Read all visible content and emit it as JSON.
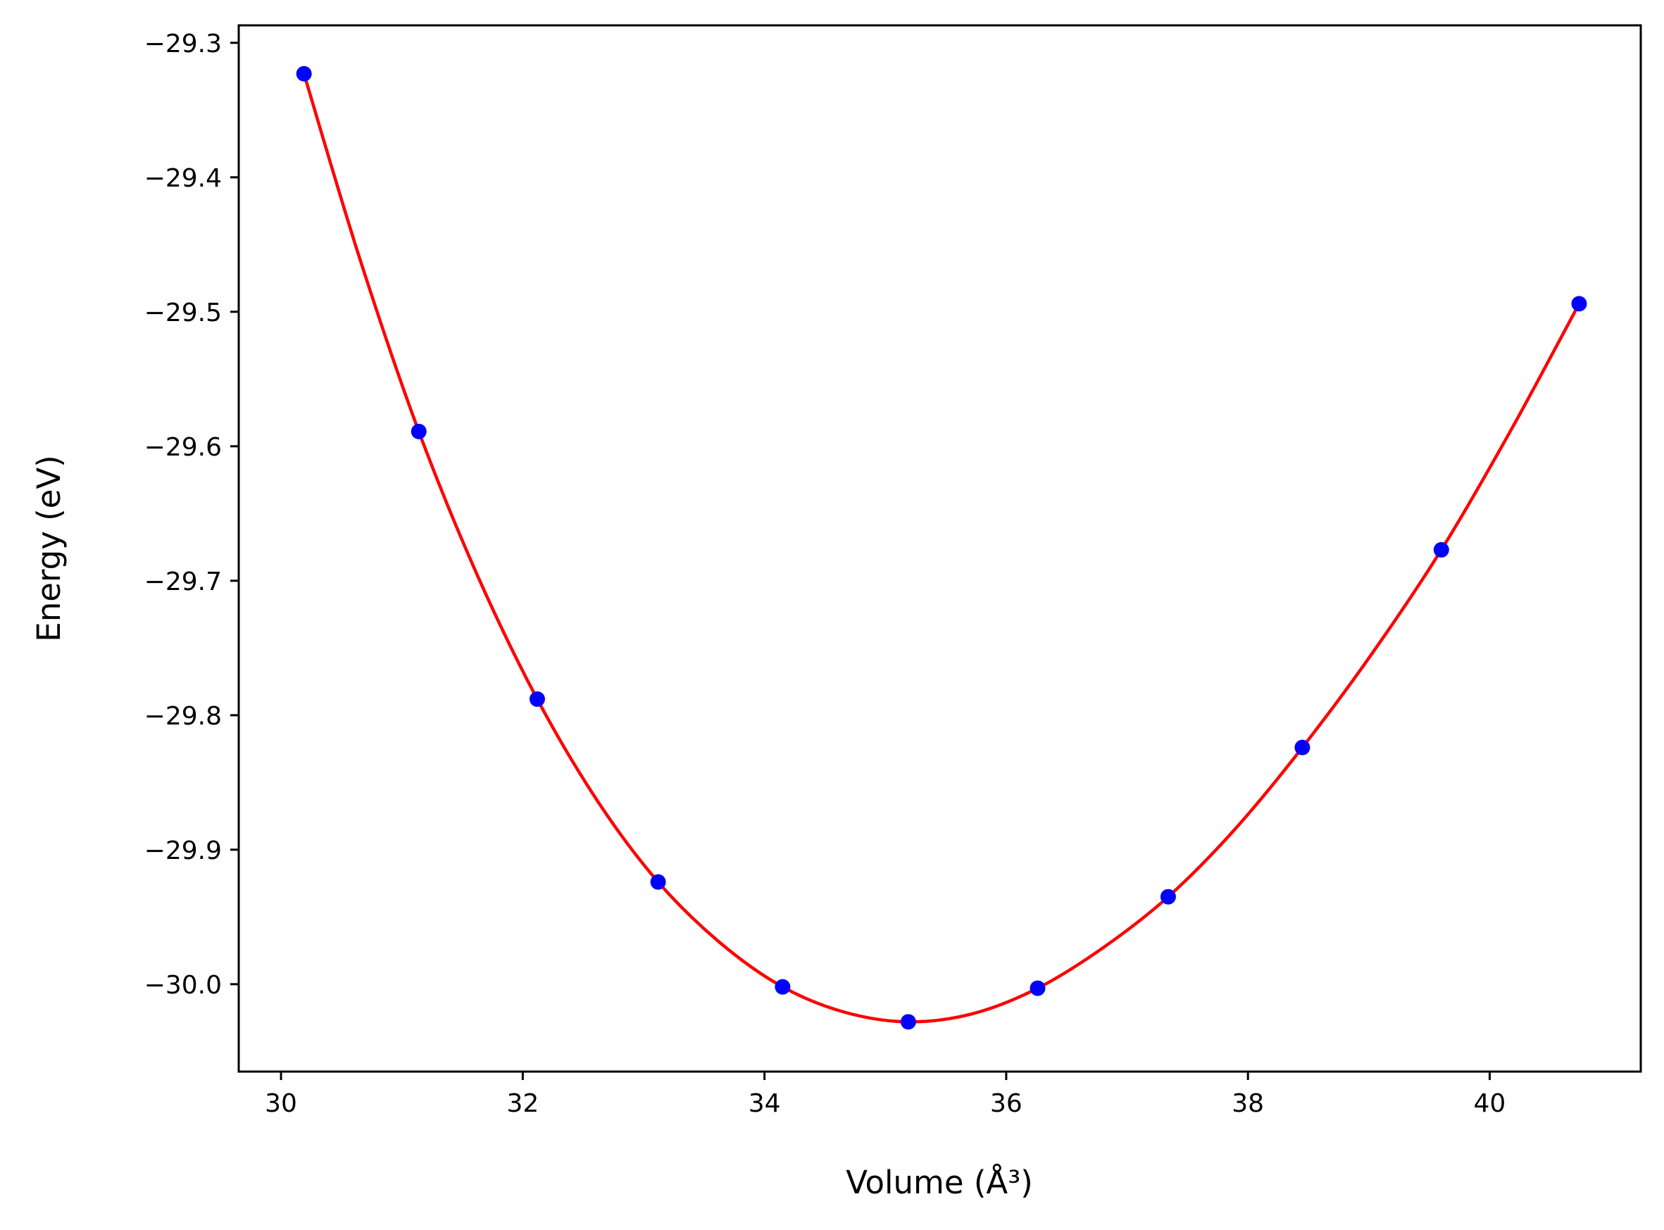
{
  "chart_data": {
    "type": "scatter",
    "xlabel": "Volume (Å³)",
    "ylabel": "Energy (eV)",
    "xlim": [
      29.65,
      41.25
    ],
    "ylim": [
      -30.065,
      -29.287
    ],
    "xticks": [
      30,
      32,
      34,
      36,
      38,
      40
    ],
    "xtick_labels": [
      "30",
      "32",
      "34",
      "36",
      "38",
      "40"
    ],
    "yticks": [
      -30.0,
      -29.9,
      -29.8,
      -29.7,
      -29.6,
      -29.5,
      -29.4,
      -29.3
    ],
    "ytick_labels": [
      "−30.0",
      "−29.9",
      "−29.8",
      "−29.7",
      "−29.6",
      "−29.5",
      "−29.4",
      "−29.3"
    ],
    "grid": false,
    "series": [
      {
        "kind": "points",
        "color": "#0000ff",
        "x": [
          30.19,
          31.14,
          32.12,
          33.12,
          34.15,
          35.19,
          36.26,
          37.34,
          38.45,
          39.6,
          40.74
        ],
        "y": [
          -29.323,
          -29.589,
          -29.788,
          -29.924,
          -30.002,
          -30.028,
          -30.003,
          -29.935,
          -29.824,
          -29.677,
          -29.494
        ]
      },
      {
        "kind": "fit-curve",
        "color": "#ff0000",
        "x": [
          30.19,
          30.65,
          31.14,
          31.62,
          32.12,
          32.62,
          33.12,
          33.63,
          34.15,
          34.67,
          35.19,
          35.72,
          36.26,
          36.8,
          37.34,
          37.89,
          38.45,
          39.02,
          39.6,
          40.17,
          40.74
        ],
        "y": [
          -29.323,
          -29.46,
          -29.589,
          -29.695,
          -29.788,
          -29.864,
          -29.924,
          -29.969,
          -30.002,
          -30.021,
          -30.028,
          -30.022,
          -30.003,
          -29.973,
          -29.935,
          -29.885,
          -29.824,
          -29.755,
          -29.677,
          -29.589,
          -29.494
        ]
      }
    ]
  }
}
